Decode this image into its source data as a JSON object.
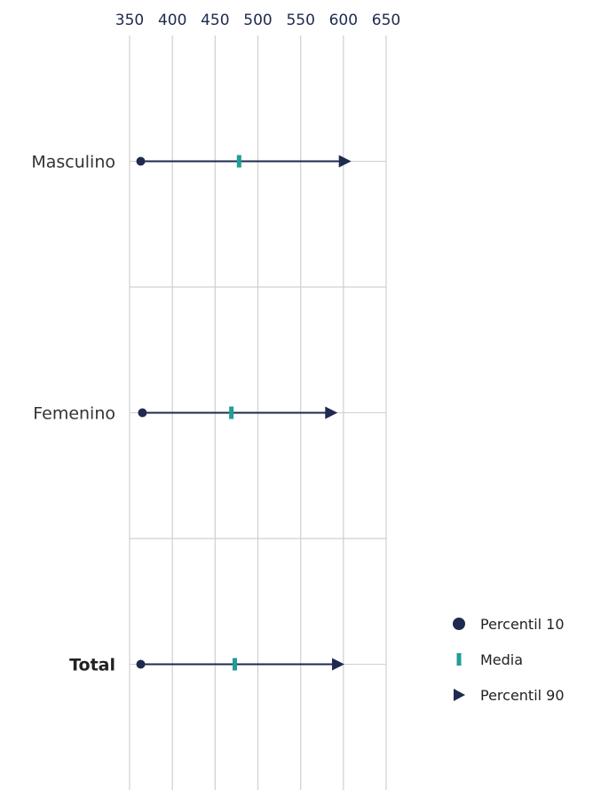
{
  "chart_data": {
    "type": "dot-range",
    "xlabel": "",
    "ylabel": "",
    "xlim": [
      350,
      650
    ],
    "x_ticks": [
      350,
      400,
      450,
      500,
      550,
      600,
      650
    ],
    "x_tick_labels": [
      "350",
      "400",
      "450",
      "500",
      "550",
      "600",
      "650"
    ],
    "x_axis_position": "top",
    "grid": true,
    "legend_position": "bottom-right",
    "categories": [
      {
        "label": "Masculino",
        "bold": false,
        "p10": 363,
        "media": 478,
        "p90": 603
      },
      {
        "label": "Femenino",
        "bold": false,
        "p10": 365,
        "media": 469,
        "p90": 587
      },
      {
        "label": "Total",
        "bold": true,
        "p10": 363,
        "media": 473,
        "p90": 595
      }
    ],
    "legend": [
      {
        "key": "p10",
        "label": "Percentil 10",
        "marker": "circle"
      },
      {
        "key": "media",
        "label": "Media",
        "marker": "bar"
      },
      {
        "key": "p90",
        "label": "Percentil 90",
        "marker": "triangle"
      }
    ],
    "colors": {
      "navy": "#1e2a4f",
      "teal": "#1f9e96",
      "grid": "#d0d0d0"
    }
  }
}
